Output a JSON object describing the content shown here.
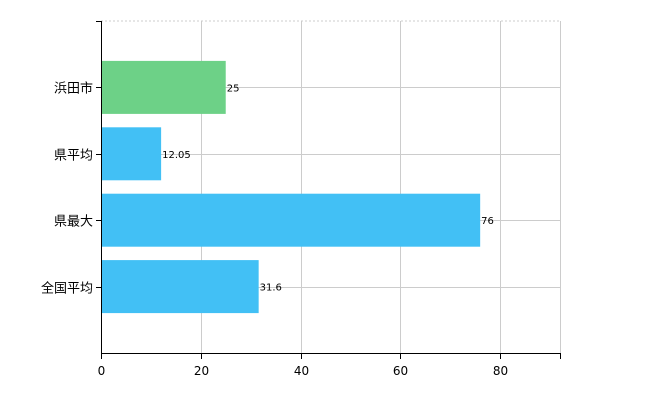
{
  "chart_data": {
    "type": "bar",
    "orientation": "horizontal",
    "categories": [
      "浜田市",
      "県平均",
      "県最大",
      "全国平均"
    ],
    "values": [
      25,
      12.05,
      76,
      31.6
    ],
    "value_labels": [
      "25",
      "12.05",
      "76",
      "31.6"
    ],
    "bar_colors": [
      "#6dd187",
      "#42c0f5",
      "#42c0f5",
      "#42c0f5"
    ],
    "xlim": [
      0,
      92
    ],
    "xticks": [
      0,
      20,
      40,
      60,
      80
    ],
    "xtick_labels": [
      "0",
      "20",
      "40",
      "60",
      "80"
    ],
    "grid": true,
    "title": "",
    "xlabel": "",
    "ylabel": ""
  }
}
